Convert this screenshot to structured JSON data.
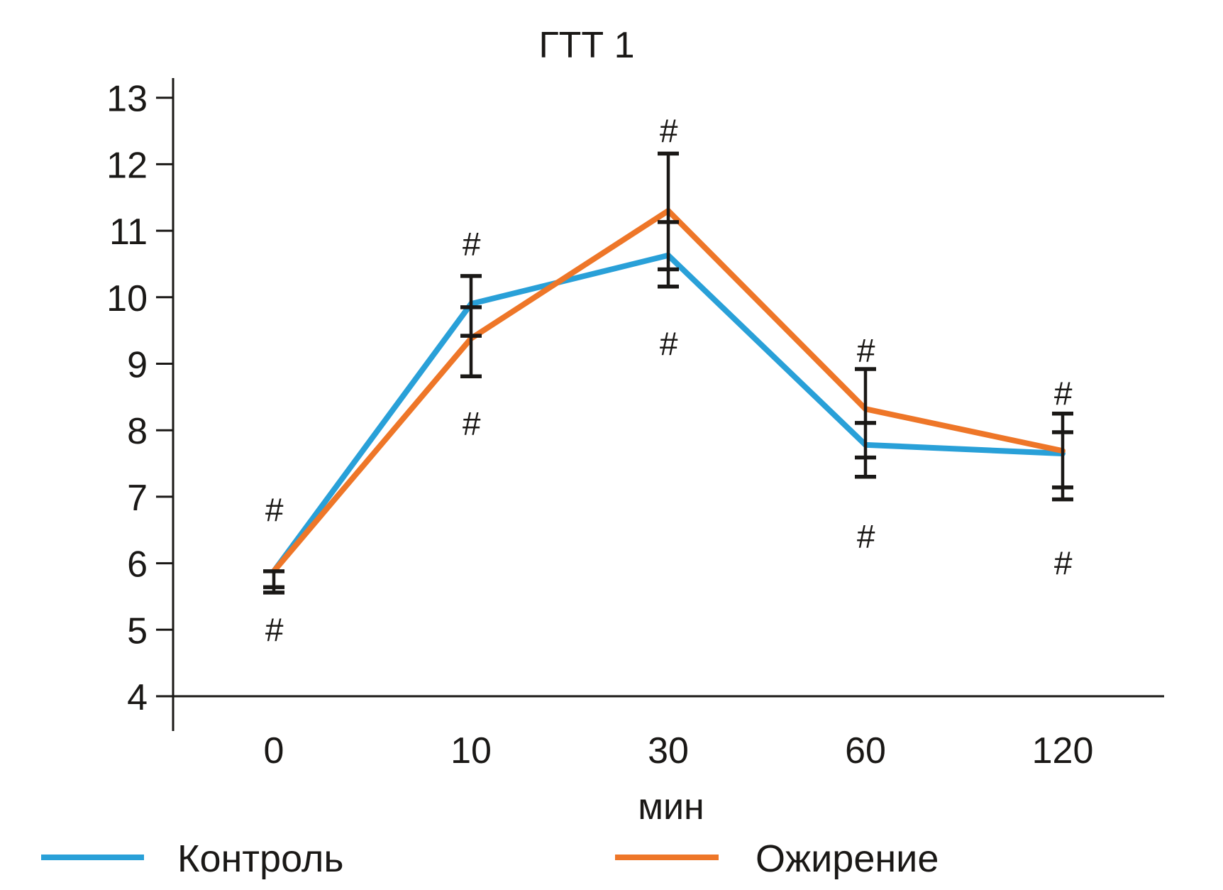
{
  "chart_data": {
    "type": "line",
    "title": "ГТТ 1",
    "xlabel": "мин",
    "ylabel": "",
    "categories": [
      "0",
      "10",
      "30",
      "60",
      "120"
    ],
    "ylim": [
      4,
      13
    ],
    "yticks": [
      4,
      5,
      6,
      7,
      8,
      9,
      10,
      11,
      12,
      13
    ],
    "grid": false,
    "legend_position": "bottom",
    "series": [
      {
        "name": "Контроль",
        "color": "#29a0d8",
        "values": [
          5.88,
          9.9,
          10.63,
          7.78,
          7.65
        ]
      },
      {
        "name": "Ожирение",
        "color": "#ee7628",
        "values": [
          5.88,
          9.38,
          11.3,
          8.32,
          7.69
        ]
      }
    ],
    "error_bars": [
      {
        "category": "0",
        "caps": [
          5.88,
          5.64,
          5.56
        ]
      },
      {
        "category": "10",
        "caps": [
          10.32,
          9.85,
          9.42,
          8.81
        ]
      },
      {
        "category": "30",
        "caps": [
          12.16,
          11.13,
          10.42,
          10.16
        ]
      },
      {
        "category": "60",
        "caps": [
          8.92,
          8.11,
          7.59,
          7.3
        ]
      },
      {
        "category": "120",
        "caps": [
          8.25,
          7.97,
          7.14,
          6.96
        ]
      }
    ],
    "annotations": [
      {
        "category": "0",
        "text": "#",
        "y": 6.8
      },
      {
        "category": "0",
        "text": "#",
        "y": 5.0
      },
      {
        "category": "10",
        "text": "#",
        "y": 10.8
      },
      {
        "category": "10",
        "text": "#",
        "y": 8.1
      },
      {
        "category": "30",
        "text": "#",
        "y": 12.5
      },
      {
        "category": "30",
        "text": "#",
        "y": 9.3
      },
      {
        "category": "60",
        "text": "#",
        "y": 9.2
      },
      {
        "category": "60",
        "text": "#",
        "y": 6.4
      },
      {
        "category": "120",
        "text": "#",
        "y": 8.55
      },
      {
        "category": "120",
        "text": "#",
        "y": 6.0
      }
    ]
  }
}
